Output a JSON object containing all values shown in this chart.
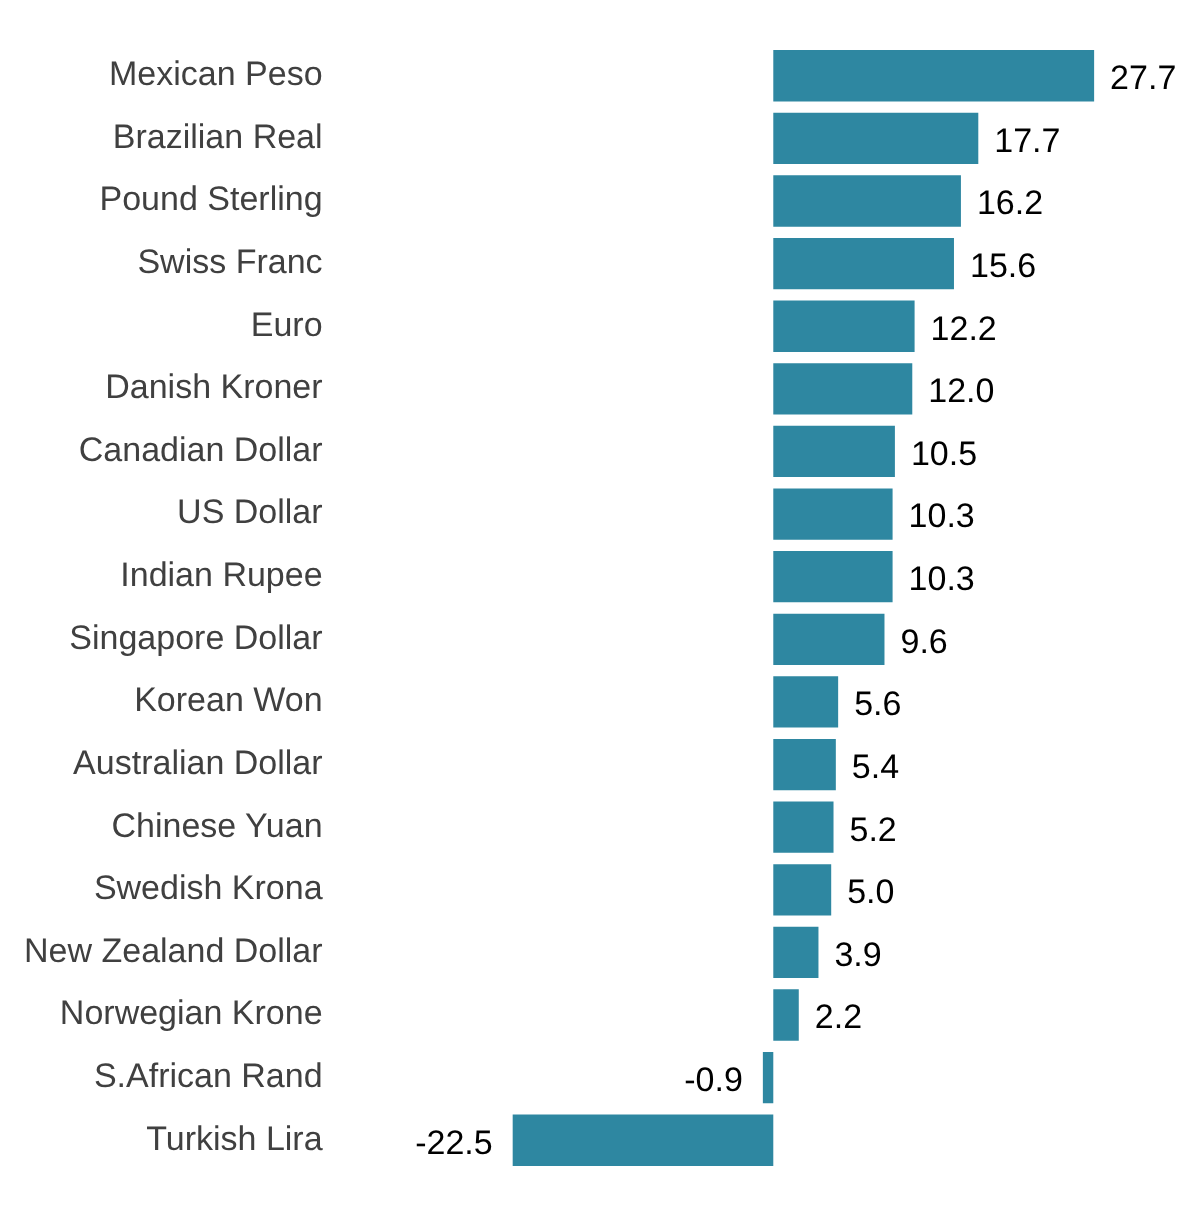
{
  "chart_data": {
    "type": "bar",
    "orientation": "horizontal",
    "categories": [
      "Mexican Peso",
      "Brazilian Real",
      "Pound Sterling",
      "Swiss Franc",
      "Euro",
      "Danish Kroner",
      "Canadian Dollar",
      "US Dollar",
      "Indian Rupee",
      "Singapore Dollar",
      "Korean Won",
      "Australian Dollar",
      "Chinese Yuan",
      "Swedish Krona",
      "New Zealand Dollar",
      "Norwegian Krone",
      "S.African Rand",
      "Turkish Lira"
    ],
    "values": [
      27.7,
      17.7,
      16.2,
      15.6,
      12.2,
      12.0,
      10.5,
      10.3,
      10.3,
      9.6,
      5.6,
      5.4,
      5.2,
      5.0,
      3.9,
      2.2,
      -0.9,
      -22.5
    ],
    "value_labels": [
      "27.7",
      "17.7",
      "16.2",
      "15.6",
      "12.2",
      "12.0",
      "10.5",
      "10.3",
      "10.3",
      "9.6",
      "5.6",
      "5.4",
      "5.2",
      "5.0",
      "3.9",
      "2.2",
      "-0.9",
      "-22.5"
    ],
    "color": "#2e87a1"
  }
}
